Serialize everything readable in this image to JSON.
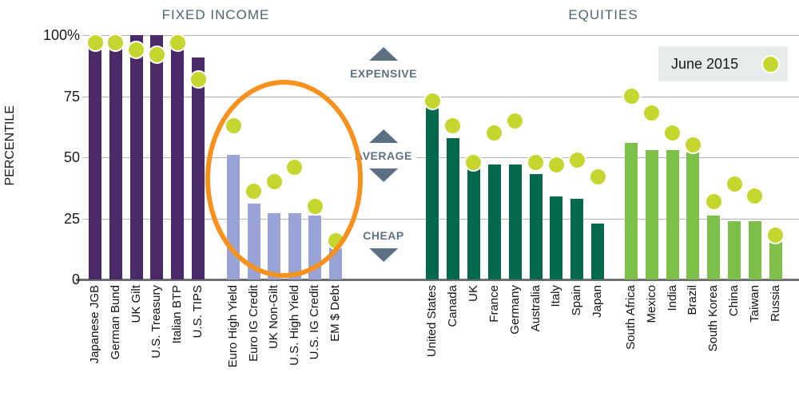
{
  "header": {
    "fixed_income_title": "FIXED INCOME",
    "equities_title": "EQUITIES"
  },
  "y_axis": {
    "title": "PERCENTILE"
  },
  "legend": {
    "label": "June 2015"
  },
  "annotations": {
    "expensive": {
      "text": "EXPENSIVE",
      "arrows": "up"
    },
    "average": {
      "text": "AVERAGE",
      "arrows": "both"
    },
    "cheap": {
      "text": "CHEAP",
      "arrows": "down"
    }
  },
  "colors": {
    "government_bonds": "#4a2a68",
    "credit": "#9aa3d6",
    "dm_equities": "#05694b",
    "em_equities": "#7cc04a",
    "dot_june_2015": "#c5d62f",
    "highlight_orange": "#f6911e",
    "annotation_slate": "#5b7183"
  },
  "chart_data": {
    "type": "bar",
    "title": "",
    "xlabel": "",
    "ylabel": "PERCENTILE",
    "ylim": [
      0,
      100
    ],
    "yticks": [
      0,
      25,
      50,
      75,
      100
    ],
    "ytick_labels": [
      "0",
      "25",
      "50",
      "75",
      "100%"
    ],
    "grid": true,
    "dot_series_name": "June 2015",
    "legend_position": "top-right",
    "highlight": "orange ellipse circling the credit group",
    "sections": [
      {
        "title": "FIXED INCOME",
        "groups": [
          {
            "bar_color": "#4a2a68",
            "categories": [
              "Japanese JGB",
              "German Bund",
              "UK Gilt",
              "U.S. Treasury",
              "Italian BTP",
              "U.S. TIPS"
            ],
            "bar_values": [
              98,
              98,
              100,
              100,
              98,
              91
            ],
            "dot_values": [
              97,
              97,
              94,
              92,
              97,
              82
            ]
          },
          {
            "bar_color": "#9aa3d6",
            "categories": [
              "Euro High Yield",
              "Euro IG Credit",
              "UK Non-Gilt",
              "U.S. High Yield",
              "U.S. IG Credit",
              "EM $ Debt"
            ],
            "bar_values": [
              51,
              31,
              27,
              27,
              26,
              14
            ],
            "dot_values": [
              63,
              36,
              40,
              46,
              30,
              16
            ]
          }
        ]
      },
      {
        "title": "EQUITIES",
        "groups": [
          {
            "bar_color": "#05694b",
            "categories": [
              "United States",
              "Canada",
              "UK",
              "France",
              "Germany",
              "Australia",
              "Italy",
              "Spain",
              "Japan"
            ],
            "bar_values": [
              71,
              58,
              46,
              47,
              47,
              43,
              34,
              33,
              23
            ],
            "dot_values": [
              73,
              63,
              48,
              60,
              65,
              48,
              47,
              49,
              42
            ]
          },
          {
            "bar_color": "#7cc04a",
            "categories": [
              "South Africa",
              "Mexico",
              "India",
              "Brazil",
              "South Korea",
              "China",
              "Taiwan",
              "Russia"
            ],
            "bar_values": [
              56,
              53,
              53,
              52,
              26,
              24,
              24,
              17
            ],
            "dot_values": [
              75,
              68,
              60,
              55,
              32,
              39,
              34,
              18
            ]
          }
        ]
      }
    ]
  }
}
